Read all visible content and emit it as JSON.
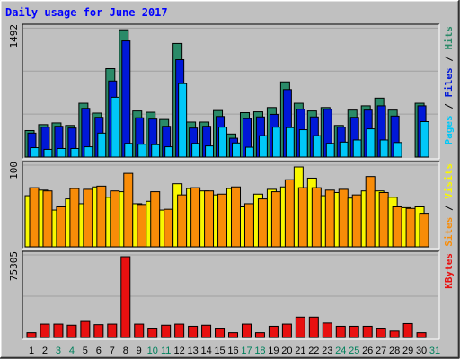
{
  "chart_data": {
    "type": "bar",
    "title": "Daily usage for June 2017",
    "categories": [
      "1",
      "2",
      "3",
      "4",
      "5",
      "6",
      "7",
      "8",
      "9",
      "10",
      "11",
      "12",
      "13",
      "14",
      "15",
      "16",
      "17",
      "18",
      "19",
      "20",
      "21",
      "22",
      "23",
      "24",
      "25",
      "26",
      "27",
      "28",
      "29",
      "30",
      "31"
    ],
    "weekend_days": [
      "3",
      "4",
      "10",
      "11",
      "17",
      "18",
      "24",
      "25"
    ],
    "future_days": [
      "31"
    ],
    "panels": [
      {
        "id": "hits",
        "ymax_label": "1492",
        "ymax": 1492,
        "series_labels": [
          "Pages",
          "Files",
          "Hits"
        ],
        "series": [
          {
            "name": "Hits",
            "color": "#2a8a68",
            "values": [
              310,
              380,
              400,
              370,
              630,
              515,
              1035,
              1490,
              540,
              525,
              440,
              1330,
              410,
              410,
              545,
              270,
              520,
              530,
              580,
              880,
              630,
              540,
              580,
              370,
              550,
              600,
              690,
              550,
              0,
              630,
              0
            ]
          },
          {
            "name": "Files",
            "color": "#0018d8",
            "values": [
              280,
              350,
              360,
              340,
              570,
              465,
              890,
              1360,
              460,
              445,
              360,
              1140,
              340,
              360,
              475,
              220,
              450,
              470,
              500,
              790,
              560,
              470,
              560,
              350,
              465,
              550,
              600,
              480,
              0,
              600,
              0
            ]
          },
          {
            "name": "Pages",
            "color": "#00c8f8",
            "values": [
              110,
              90,
              100,
              100,
              120,
              280,
              700,
              160,
              150,
              145,
              120,
              860,
              160,
              130,
              350,
              165,
              115,
              250,
              350,
              345,
              320,
              250,
              160,
              175,
              200,
              330,
              200,
              170,
              0,
              415,
              0
            ]
          }
        ]
      },
      {
        "id": "visits",
        "ymax_label": "100",
        "ymax": 100,
        "series_labels": [
          "Sites",
          "Visits"
        ],
        "series": [
          {
            "name": "Visits",
            "color": "#f8f800",
            "values": [
              64,
              71,
              46,
              60,
              54,
              75,
              62,
              69,
              54,
              57,
              46,
              79,
              73,
              70,
              65,
              73,
              50,
              66,
              72,
              75,
              100,
              86,
              64,
              68,
              61,
              70,
              70,
              62,
              49,
              50,
              0
            ]
          },
          {
            "name": "Sites",
            "color": "#f88c08",
            "values": [
              74,
              70,
              50,
              73,
              72,
              76,
              70,
              92,
              53,
              69,
              47,
              65,
              74,
              70,
              66,
              75,
              54,
              60,
              69,
              84,
              74,
              74,
              71,
              72,
              65,
              88,
              68,
              50,
              48,
              42,
              0
            ]
          }
        ]
      },
      {
        "id": "kbytes",
        "ymax_label": "75305",
        "ymax": 75305,
        "series_labels": [
          "KBytes"
        ],
        "series": [
          {
            "name": "KBytes",
            "color": "#e81010",
            "values": [
              4500,
              12500,
              12500,
              11500,
              15000,
              12000,
              12500,
              75305,
              12500,
              8000,
              11500,
              12500,
              10500,
              11500,
              8000,
              4500,
              12500,
              4500,
              10500,
              12500,
              19000,
              19000,
              13500,
              10500,
              10500,
              10500,
              8000,
              6000,
              13000,
              4500,
              0
            ]
          }
        ]
      }
    ],
    "colors": {
      "background": "#c0c0c0",
      "plot_area": "#c0c0c0",
      "gridline": "#a0a0a0",
      "title": "#0000ff",
      "weekday_label": "#000000",
      "weekend_label": "#00805c",
      "ymax_label": "#000000",
      "label_pages": "#00c8f8",
      "label_files": "#0018d8",
      "label_hits": "#2a8a68",
      "label_sites": "#f88c08",
      "label_visits": "#f8f800",
      "label_kbytes": "#e81010",
      "label_separator": "#000000"
    }
  }
}
